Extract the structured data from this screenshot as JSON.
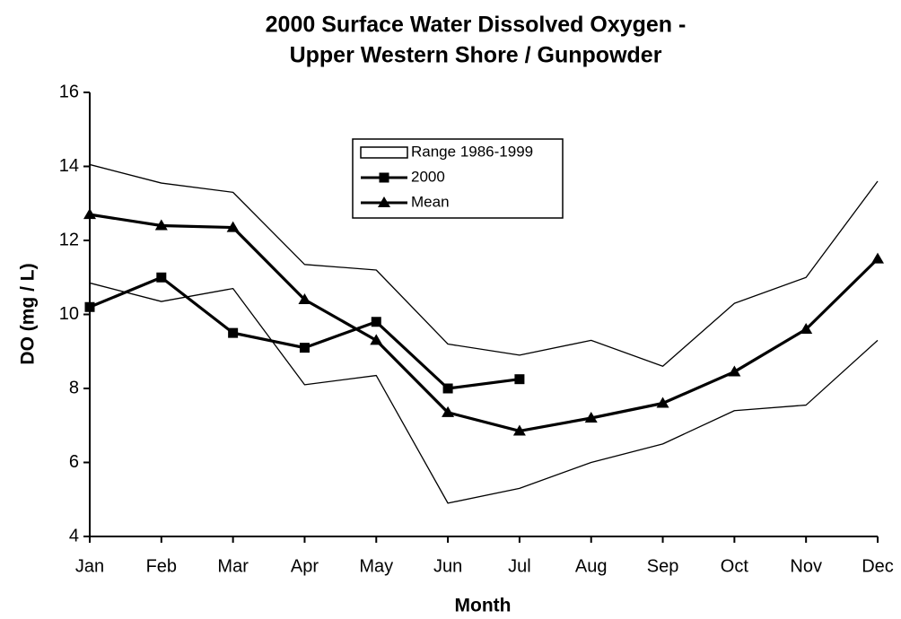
{
  "chart_data": {
    "type": "line",
    "title": [
      "2000 Surface Water Dissolved Oxygen -",
      "Upper Western Shore / Gunpowder"
    ],
    "x_label": "Month",
    "y_label": "DO (mg / L)",
    "categories": [
      "Jan",
      "Feb",
      "Mar",
      "Apr",
      "May",
      "Jun",
      "Jul",
      "Aug",
      "Sep",
      "Oct",
      "Nov",
      "Dec"
    ],
    "ylim": [
      4,
      16
    ],
    "yticks": [
      4,
      6,
      8,
      10,
      12,
      14,
      16
    ],
    "grid": false,
    "range": {
      "name": "Range 1986-1999",
      "color": "#000000",
      "upper": [
        14.05,
        13.55,
        13.3,
        11.35,
        11.2,
        9.2,
        8.9,
        9.3,
        8.6,
        10.3,
        11.0,
        13.6
      ],
      "lower": [
        10.85,
        10.35,
        10.7,
        8.1,
        8.35,
        4.9,
        5.3,
        6.0,
        6.5,
        7.4,
        7.55,
        9.3
      ]
    },
    "series": [
      {
        "name": "2000",
        "color": "#000000",
        "marker": "square",
        "values": [
          10.2,
          11.0,
          9.5,
          9.1,
          9.8,
          8.0,
          8.25,
          null,
          null,
          null,
          null,
          null
        ]
      },
      {
        "name": "Mean",
        "color": "#000000",
        "marker": "triangle",
        "values": [
          12.7,
          12.4,
          12.35,
          10.4,
          9.3,
          7.35,
          6.85,
          7.2,
          7.6,
          8.45,
          9.6,
          11.5
        ]
      }
    ]
  }
}
